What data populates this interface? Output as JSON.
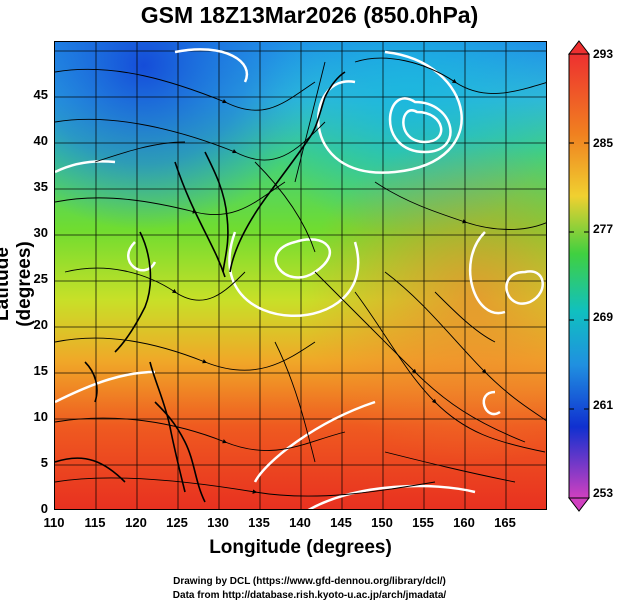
{
  "title": "GSM 18Z13Mar2026 (850.0hPa)",
  "axes": {
    "xlabel": "Longitude (degrees)",
    "ylabel": "Latitude  (degrees)",
    "xticks": [
      "110",
      "115",
      "120",
      "125",
      "130",
      "135",
      "140",
      "145",
      "150",
      "155",
      "160",
      "165"
    ],
    "yticks": [
      "0",
      "5",
      "10",
      "15",
      "20",
      "25",
      "30",
      "35",
      "40",
      "45"
    ],
    "xlim": [
      110,
      170
    ],
    "ylim": [
      0,
      50
    ]
  },
  "colorbar": {
    "labels": [
      "293",
      "285",
      "277",
      "269",
      "261",
      "253"
    ],
    "range": [
      253,
      293
    ],
    "colors": [
      "#ee3030",
      "#f08020",
      "#f0d030",
      "#20c030",
      "#10c0c0",
      "#2090e0",
      "#1030d0",
      "#d040c0"
    ]
  },
  "credits": {
    "drawing": "Drawing by DCL (https://www.gfd-dennou.org/library/dcl/)",
    "data": "Data from http://database.rish.kyoto-u.ac.jp/arch/jmadata/"
  }
}
